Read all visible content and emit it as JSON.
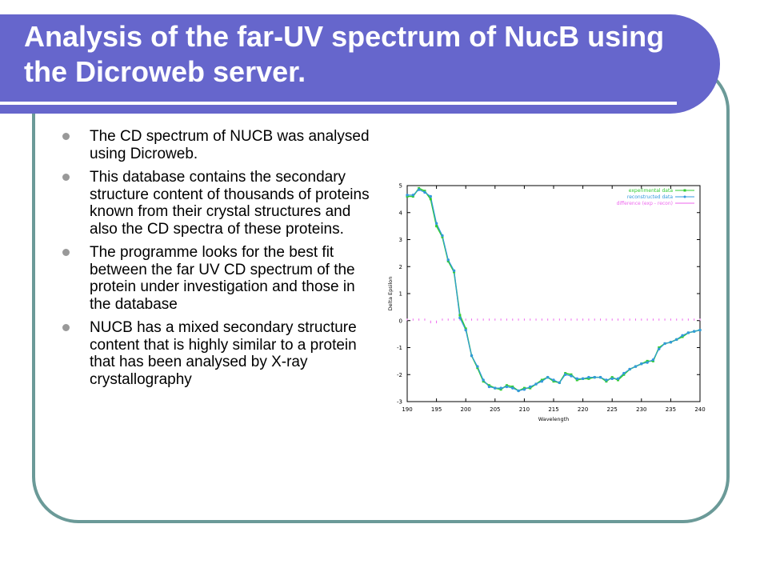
{
  "slide": {
    "title": "Analysis of the far-UV spectrum of NucB using the Dicroweb server.",
    "bullets": [
      "The CD spectrum of NUCB was analysed using Dicroweb.",
      "This database contains the secondary structure content of thousands of proteins known from their crystal structures and also the CD spectra of these proteins.",
      "The programme looks for the best fit between the far UV CD spectrum of the protein under investigation and those in the database",
      "NUCB has a mixed secondary structure content that is highly similar to a protein that has been analysed by X-ray crystallography"
    ]
  },
  "colors": {
    "title_bar": "#6666cc",
    "frame_border": "#6b9a98",
    "experimental": "#33cc33",
    "reconstructed": "#3399dd",
    "difference": "#ee66ee"
  },
  "chart_data": {
    "type": "line",
    "xlabel": "Wavelength",
    "ylabel": "Delta Epsilon",
    "xlim": [
      190,
      240
    ],
    "ylim": [
      -3,
      5
    ],
    "xticks": [
      190,
      195,
      200,
      205,
      210,
      215,
      220,
      225,
      230,
      235,
      240
    ],
    "yticks": [
      -3,
      -2,
      -1,
      0,
      1,
      2,
      3,
      4,
      5
    ],
    "legend_position": "top-right",
    "x": [
      190,
      191,
      192,
      193,
      194,
      195,
      196,
      197,
      198,
      199,
      200,
      201,
      202,
      203,
      204,
      205,
      206,
      207,
      208,
      209,
      210,
      211,
      212,
      213,
      214,
      215,
      216,
      217,
      218,
      219,
      220,
      221,
      222,
      223,
      224,
      225,
      226,
      227,
      228,
      229,
      230,
      231,
      232,
      233,
      234,
      235,
      236,
      237,
      238,
      239,
      240
    ],
    "series": [
      {
        "name": "experimental data",
        "values": [
          4.6,
          4.6,
          4.9,
          4.8,
          4.5,
          3.5,
          3.1,
          2.2,
          1.8,
          0.2,
          -0.3,
          -1.3,
          -1.75,
          -2.25,
          -2.4,
          -2.5,
          -2.55,
          -2.4,
          -2.45,
          -2.6,
          -2.5,
          -2.5,
          -2.35,
          -2.2,
          -2.1,
          -2.25,
          -2.3,
          -1.95,
          -2.0,
          -2.2,
          -2.15,
          -2.15,
          -2.1,
          -2.1,
          -2.25,
          -2.1,
          -2.2,
          -2.0,
          -1.8,
          -1.7,
          -1.6,
          -1.5,
          -1.5,
          -1.0,
          -0.85,
          -0.8,
          -0.7,
          -0.6,
          -0.45,
          -0.4,
          -0.35
        ]
      },
      {
        "name": "reconstructed data",
        "values": [
          4.65,
          4.65,
          4.85,
          4.75,
          4.6,
          3.6,
          3.15,
          2.25,
          1.85,
          0.1,
          -0.35,
          -1.3,
          -1.7,
          -2.2,
          -2.45,
          -2.5,
          -2.5,
          -2.45,
          -2.5,
          -2.6,
          -2.55,
          -2.45,
          -2.35,
          -2.25,
          -2.1,
          -2.2,
          -2.3,
          -2.0,
          -2.05,
          -2.15,
          -2.15,
          -2.1,
          -2.1,
          -2.1,
          -2.2,
          -2.15,
          -2.15,
          -1.95,
          -1.8,
          -1.7,
          -1.6,
          -1.55,
          -1.45,
          -1.05,
          -0.85,
          -0.8,
          -0.7,
          -0.55,
          -0.45,
          -0.4,
          -0.35
        ]
      },
      {
        "name": "difference (exp - recon)",
        "values": [
          -0.05,
          -0.05,
          0.05,
          0.05,
          -0.1,
          -0.1,
          -0.05,
          -0.05,
          -0.05,
          0.1,
          0.05,
          0.0,
          -0.05,
          -0.05,
          0.05,
          0.0,
          -0.05,
          0.05,
          0.05,
          0.0,
          0.05,
          -0.05,
          0.0,
          0.05,
          0.0,
          -0.05,
          0.0,
          0.05,
          0.05,
          -0.05,
          0.0,
          -0.05,
          0.0,
          0.0,
          -0.05,
          0.05,
          -0.05,
          -0.05,
          0.0,
          0.0,
          0.0,
          0.05,
          -0.05,
          0.05,
          0.0,
          0.0,
          0.0,
          -0.05,
          0.0,
          0.0,
          0.0
        ]
      }
    ]
  }
}
